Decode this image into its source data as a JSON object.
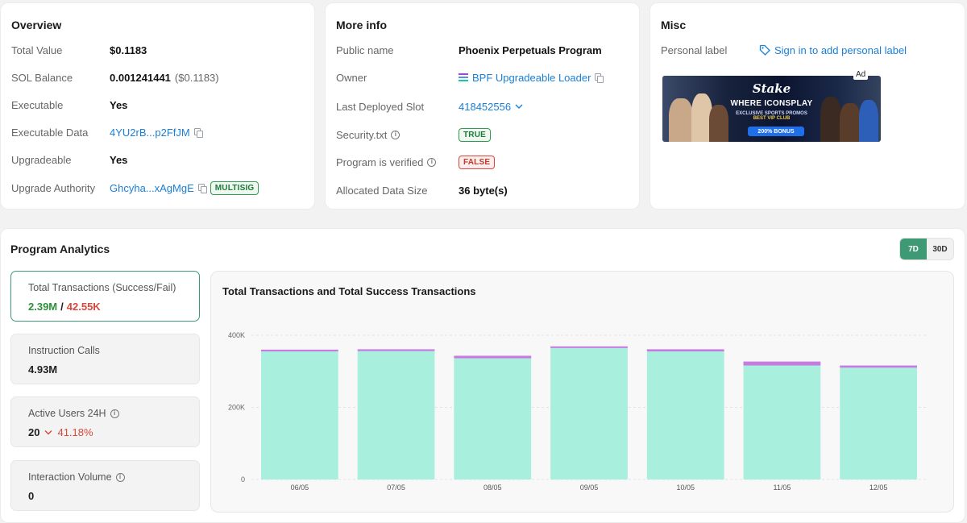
{
  "overview": {
    "title": "Overview",
    "total_value_label": "Total Value",
    "total_value": "$0.1183",
    "sol_balance_label": "SOL Balance",
    "sol_balance": "0.001241441",
    "sol_balance_usd": "($0.1183)",
    "executable_label": "Executable",
    "executable": "Yes",
    "executable_data_label": "Executable Data",
    "executable_data": "4YU2rB...p2FfJM",
    "upgradeable_label": "Upgradeable",
    "upgradeable": "Yes",
    "upgrade_authority_label": "Upgrade Authority",
    "upgrade_authority": "Ghcyha...xAgMgE",
    "multisig_badge": "MULTISIG"
  },
  "more_info": {
    "title": "More info",
    "public_name_label": "Public name",
    "public_name": "Phoenix Perpetuals Program",
    "owner_label": "Owner",
    "owner": "BPF Upgradeable Loader",
    "last_deployed_slot_label": "Last Deployed Slot",
    "last_deployed_slot": "418452556",
    "security_txt_label": "Security.txt",
    "security_txt": "TRUE",
    "verified_label": "Program is verified",
    "verified": "FALSE",
    "data_size_label": "Allocated Data Size",
    "data_size": "36 byte(s)"
  },
  "misc": {
    "title": "Misc",
    "personal_label_label": "Personal label",
    "personal_label_link": "Sign in to add personal label",
    "ad_tag": "Ad",
    "ad_logo": "Stake",
    "ad_headline": "WHERE ICONSPLAY",
    "ad_sub1": "EXCLUSIVE SPORTS PROMOS",
    "ad_sub2": "BEST VIP CLUB",
    "ad_button": "200% BONUS"
  },
  "analytics": {
    "title": "Program Analytics",
    "range_7d": "7D",
    "range_30d": "30D",
    "selected_range": "7D",
    "stats": [
      {
        "label": "Total Transactions (Success/Fail)",
        "success": "2.39M",
        "sep": "/",
        "fail": "42.55K"
      },
      {
        "label": "Instruction Calls",
        "value": "4.93M"
      },
      {
        "label": "Active Users 24H",
        "value": "20",
        "change": "41.18%"
      },
      {
        "label": "Interaction Volume",
        "value": "0"
      }
    ]
  },
  "chart_data": {
    "type": "bar",
    "title": "Total Transactions and Total Success Transactions",
    "categories": [
      "06/05",
      "07/05",
      "08/05",
      "09/05",
      "10/05",
      "11/05",
      "12/05"
    ],
    "series": [],
    "success": [
      355000,
      356000,
      336000,
      365000,
      355000,
      316000,
      310000
    ],
    "total": [
      360000,
      361000,
      343000,
      369000,
      361000,
      327000,
      316000
    ],
    "ylim": [
      0,
      420000
    ],
    "yticks": [
      0,
      200000,
      400000
    ],
    "ytick_labels": [
      "0",
      "200K",
      "400K"
    ],
    "colors": {
      "success": "#a8efdd",
      "fail": "#c57be0"
    },
    "grid": true
  }
}
